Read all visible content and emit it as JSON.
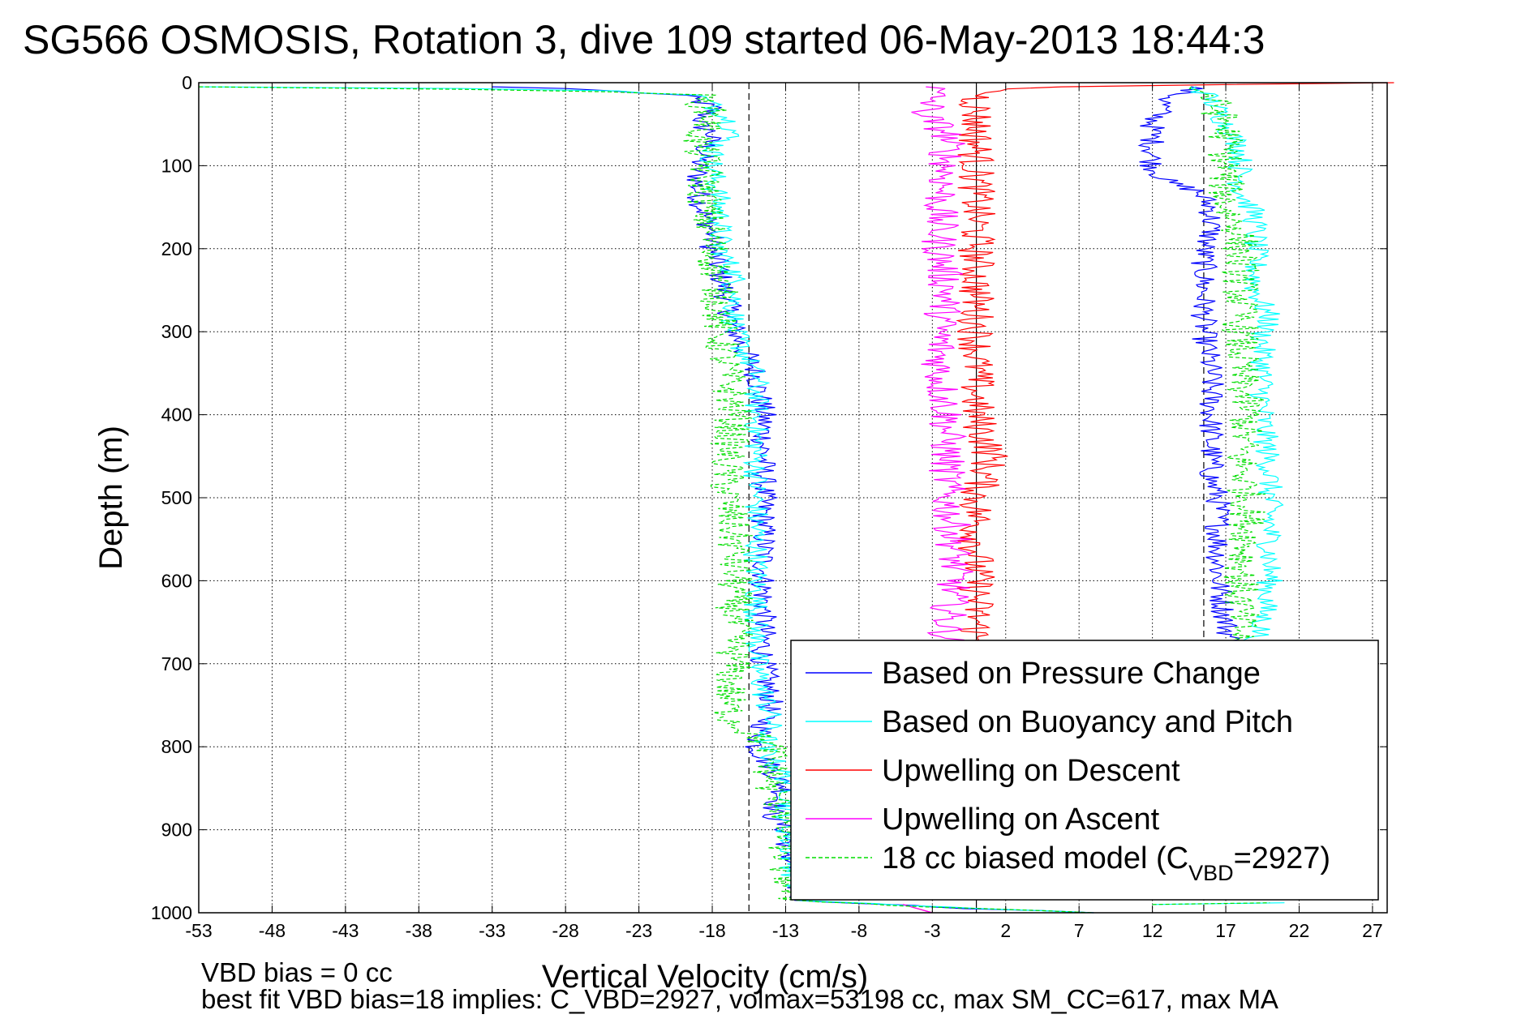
{
  "page": {
    "title": "SG566 OSMOSIS, Rotation 3, dive 109 started 06-May-2013 18:44:3",
    "footer_line1": "VBD bias = 0 cc",
    "footer_line2": "best fit VBD bias=18 implies: C_VBD=2927, volmax=53198 cc, max SM_CC=617, max MA"
  },
  "chart_data": {
    "type": "line",
    "xlabel": "Vertical Velocity (cm/s)",
    "ylabel": "Depth (m)",
    "xlim": [
      -53,
      28
    ],
    "ylim": [
      1000,
      0
    ],
    "y_inverted": true,
    "xticks": [
      -53,
      -48,
      -43,
      -38,
      -33,
      -28,
      -23,
      -18,
      -13,
      -8,
      -3,
      2,
      7,
      12,
      17,
      22,
      27
    ],
    "yticks": [
      0,
      100,
      200,
      300,
      400,
      500,
      600,
      700,
      800,
      900,
      1000
    ],
    "grid": true,
    "legend_position": "bottom-right",
    "reference_lines": [
      {
        "x": -15.5,
        "style": "dashed",
        "color": "#000000"
      },
      {
        "x": 0,
        "style": "solid",
        "color": "#000000"
      },
      {
        "x": 15.5,
        "style": "dashed",
        "color": "#000000"
      }
    ],
    "series": [
      {
        "name": "Based on Pressure Change",
        "color": "#0000ff",
        "style": "solid",
        "segments": [
          [
            [
              -33,
              5
            ],
            [
              -28,
              7
            ],
            [
              -25,
              10
            ],
            [
              -20,
              15
            ],
            [
              -18,
              30
            ],
            [
              -19,
              50
            ],
            [
              -18,
              60
            ],
            [
              -18.5,
              80
            ],
            [
              -19,
              100
            ],
            [
              -19,
              130
            ],
            [
              -18.5,
              160
            ],
            [
              -18,
              180
            ],
            [
              -18,
              200
            ],
            [
              -17.5,
              230
            ],
            [
              -17,
              260
            ],
            [
              -16.5,
              300
            ],
            [
              -15,
              350
            ],
            [
              -14.5,
              400
            ],
            [
              -14.5,
              450
            ],
            [
              -14.5,
              500
            ],
            [
              -14.5,
              550
            ],
            [
              -14.5,
              600
            ],
            [
              -14.5,
              650
            ],
            [
              -14.5,
              700
            ],
            [
              -14,
              750
            ],
            [
              -15,
              800
            ],
            [
              -13,
              850
            ],
            [
              -14,
              880
            ],
            [
              -13,
              900
            ],
            [
              -12.5,
              950
            ],
            [
              -12,
              985
            ],
            [
              0,
              995
            ],
            [
              8,
              1000
            ]
          ],
          [
            [
              15,
              5
            ],
            [
              13,
              20
            ],
            [
              12,
              50
            ],
            [
              12,
              80
            ],
            [
              12,
              100
            ],
            [
              13,
              120
            ],
            [
              15,
              130
            ],
            [
              16,
              150
            ],
            [
              16,
              180
            ],
            [
              15.5,
              200
            ],
            [
              15.5,
              250
            ],
            [
              15.5,
              300
            ],
            [
              16,
              350
            ],
            [
              16,
              400
            ],
            [
              16,
              450
            ],
            [
              16,
              480
            ],
            [
              16.5,
              500
            ],
            [
              16.5,
              550
            ],
            [
              16.5,
              600
            ],
            [
              17,
              650
            ],
            [
              17.5,
              680
            ]
          ]
        ]
      },
      {
        "name": "Based on Buoyancy and Pitch",
        "color": "#00ffff",
        "style": "solid",
        "segments": [
          [
            [
              -53,
              5
            ],
            [
              -35,
              7
            ],
            [
              -25,
              10
            ],
            [
              -19,
              15
            ],
            [
              -17,
              40
            ],
            [
              -16.5,
              60
            ],
            [
              -18,
              80
            ],
            [
              -18,
              100
            ],
            [
              -17.5,
              150
            ],
            [
              -17.5,
              180
            ],
            [
              -17.5,
              200
            ],
            [
              -16.5,
              230
            ],
            [
              -16.5,
              300
            ],
            [
              -15,
              355
            ],
            [
              -15,
              400
            ],
            [
              -15,
              500
            ],
            [
              -15,
              600
            ],
            [
              -15,
              700
            ],
            [
              -14,
              770
            ],
            [
              -14.5,
              800
            ],
            [
              -12.5,
              850
            ],
            [
              -13,
              880
            ],
            [
              -12.5,
              950
            ],
            [
              -12,
              985
            ],
            [
              0,
              995
            ],
            [
              8,
              1000
            ]
          ],
          [
            [
              15,
              5
            ],
            [
              16,
              20
            ],
            [
              17,
              50
            ],
            [
              18,
              80
            ],
            [
              18,
              100
            ],
            [
              18,
              130
            ],
            [
              19,
              160
            ],
            [
              19,
              200
            ],
            [
              19,
              250
            ],
            [
              20,
              285
            ],
            [
              19.5,
              300
            ],
            [
              19.5,
              350
            ],
            [
              19.5,
              400
            ],
            [
              20,
              470
            ],
            [
              20,
              500
            ],
            [
              20,
              550
            ],
            [
              20,
              600
            ],
            [
              19.5,
              650
            ],
            [
              19,
              680
            ]
          ],
          [
            [
              12,
              990
            ],
            [
              21,
              988
            ]
          ]
        ]
      },
      {
        "name": "Upwelling on Descent",
        "color": "#ff0000",
        "style": "solid",
        "segments": [
          [
            [
              27.5,
              0
            ],
            [
              5,
              5
            ],
            [
              1,
              10
            ],
            [
              0,
              20
            ],
            [
              0,
              50
            ],
            [
              0,
              100
            ],
            [
              0,
              200
            ],
            [
              0,
              300
            ],
            [
              0,
              400
            ],
            [
              1,
              450
            ],
            [
              0,
              500
            ],
            [
              0,
              550
            ],
            [
              0,
              600
            ],
            [
              0,
              650
            ],
            [
              0,
              680
            ]
          ],
          [
            [
              -5,
              990
            ],
            [
              -3,
              1000
            ]
          ]
        ]
      },
      {
        "name": "Upwelling on Ascent",
        "color": "#ff00ff",
        "style": "solid",
        "segments": [
          [
            [
              -3,
              5
            ],
            [
              -3,
              20
            ],
            [
              -3.5,
              40
            ],
            [
              -2,
              60
            ],
            [
              -2,
              100
            ],
            [
              -2.5,
              150
            ],
            [
              -2.5,
              200
            ],
            [
              -2,
              250
            ],
            [
              -2.5,
              300
            ],
            [
              -2.5,
              350
            ],
            [
              -2,
              400
            ],
            [
              -2,
              450
            ],
            [
              -2,
              500
            ],
            [
              -1.5,
              550
            ],
            [
              -1.5,
              600
            ],
            [
              -2,
              650
            ],
            [
              -2,
              680
            ]
          ],
          [
            [
              -5,
              990
            ],
            [
              -3,
              1000
            ]
          ]
        ]
      },
      {
        "name": "18 cc biased model (C",
        "name_subscript": "VBD",
        "name_suffix": "=2927)",
        "color": "#00dd00",
        "style": "dashed",
        "segments": [
          [
            [
              -53,
              5
            ],
            [
              -35,
              8
            ],
            [
              -25,
              11
            ],
            [
              -19,
              15
            ],
            [
              -18,
              40
            ],
            [
              -19,
              70
            ],
            [
              -18.5,
              100
            ],
            [
              -18.5,
              150
            ],
            [
              -18,
              200
            ],
            [
              -17.5,
              250
            ],
            [
              -17.5,
              300
            ],
            [
              -17,
              350
            ],
            [
              -16.5,
              400
            ],
            [
              -17,
              450
            ],
            [
              -17,
              500
            ],
            [
              -16.5,
              550
            ],
            [
              -16.5,
              600
            ],
            [
              -16.5,
              650
            ],
            [
              -16.5,
              700
            ],
            [
              -17,
              750
            ],
            [
              -16.5,
              770
            ],
            [
              -14,
              800
            ],
            [
              -14,
              850
            ],
            [
              -13,
              880
            ],
            [
              -13,
              900
            ],
            [
              -13,
              950
            ],
            [
              -12.5,
              985
            ],
            [
              0,
              995
            ],
            [
              8,
              1000
            ]
          ],
          [
            [
              15,
              5
            ],
            [
              16,
              20
            ],
            [
              17,
              50
            ],
            [
              17,
              100
            ],
            [
              17,
              150
            ],
            [
              18,
              180
            ],
            [
              18,
              200
            ],
            [
              18,
              250
            ],
            [
              18,
              300
            ],
            [
              18,
              350
            ],
            [
              18.5,
              400
            ],
            [
              18,
              450
            ],
            [
              18.5,
              500
            ],
            [
              18.5,
              550
            ],
            [
              18,
              600
            ],
            [
              18,
              650
            ],
            [
              18,
              680
            ]
          ],
          [
            [
              12,
              990
            ],
            [
              20,
              988
            ]
          ]
        ]
      }
    ]
  }
}
